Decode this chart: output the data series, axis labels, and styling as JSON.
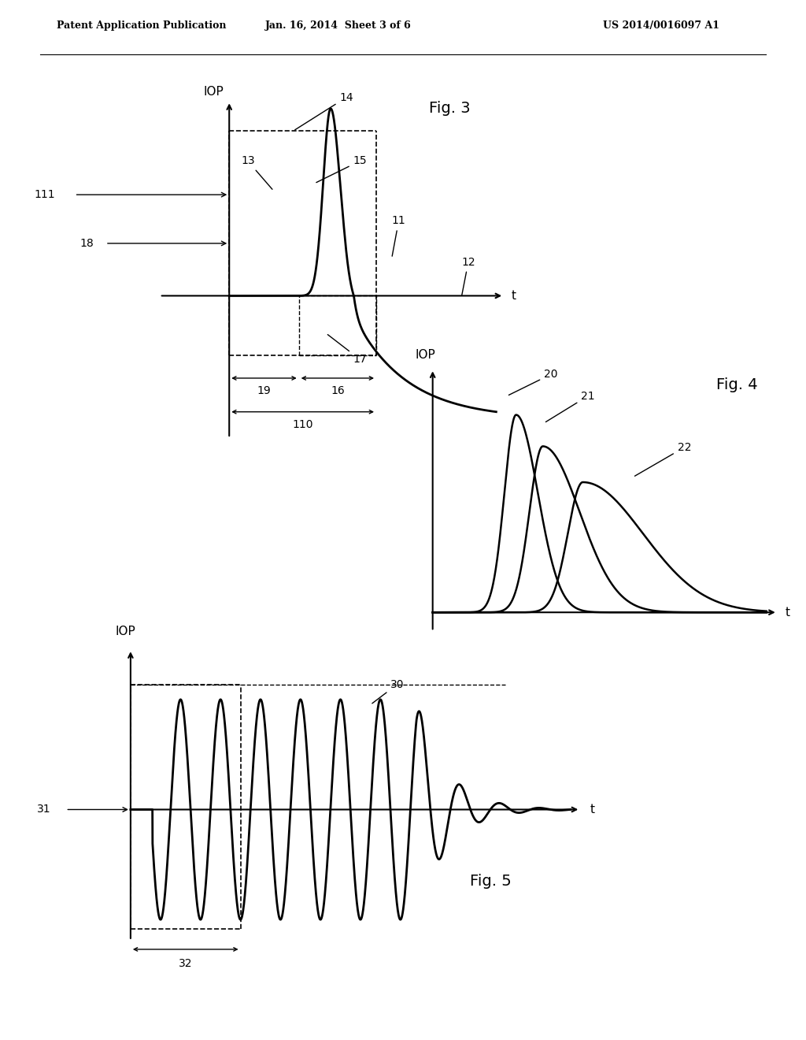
{
  "bg_color": "#ffffff",
  "header_left": "Patent Application Publication",
  "header_mid": "Jan. 16, 2014  Sheet 3 of 6",
  "header_right": "US 2014/0016097 A1",
  "fig3_label": "Fig. 3",
  "fig4_label": "Fig. 4",
  "fig5_label": "Fig. 5"
}
